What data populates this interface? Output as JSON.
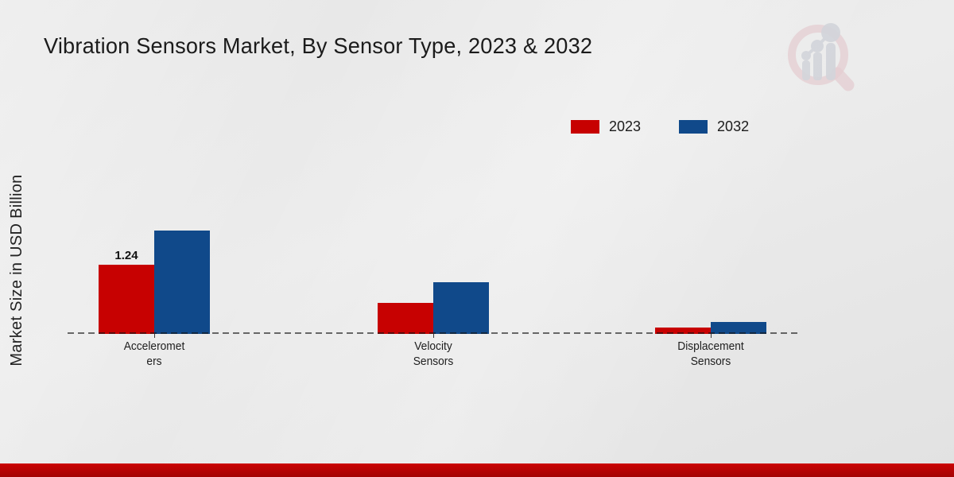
{
  "title": "Vibration Sensors Market, By Sensor Type, 2023 & 2032",
  "y_axis_label": "Market Size in USD Billion",
  "legend": [
    {
      "label": "2023",
      "color": "#c70101"
    },
    {
      "label": "2032",
      "color": "#10498a"
    }
  ],
  "colors": {
    "series_2023": "#c70101",
    "series_2032": "#10498a",
    "footer_bar": "#c00000",
    "background": "#e8e8e8"
  },
  "logo": {
    "name": "market-research-watermark-magnifier-bar-chart"
  },
  "chart_data": {
    "type": "bar",
    "title": "Vibration Sensors Market, By Sensor Type, 2023 & 2032",
    "xlabel": "",
    "ylabel": "Market Size in USD Billion",
    "categories": [
      "Accelerometers",
      "Velocity Sensors",
      "Displacement Sensors"
    ],
    "category_tick_lines": [
      [
        "Acceleromet",
        "ers"
      ],
      [
        "Velocity",
        "Sensors"
      ],
      [
        "Displacement",
        "Sensors"
      ]
    ],
    "series": [
      {
        "name": "2023",
        "color": "#c70101",
        "values": [
          1.24,
          0.56,
          0.12
        ],
        "data_labels": [
          "1.24",
          "",
          ""
        ]
      },
      {
        "name": "2032",
        "color": "#10498a",
        "values": [
          1.85,
          0.93,
          0.22
        ],
        "data_labels": [
          "",
          "",
          ""
        ]
      }
    ],
    "ylim": [
      0,
      2.0
    ],
    "grid": false,
    "baseline_style": "dashed",
    "legend_position": "top-right",
    "data_label_shown": "2023 Accelerometers = 1.24"
  }
}
